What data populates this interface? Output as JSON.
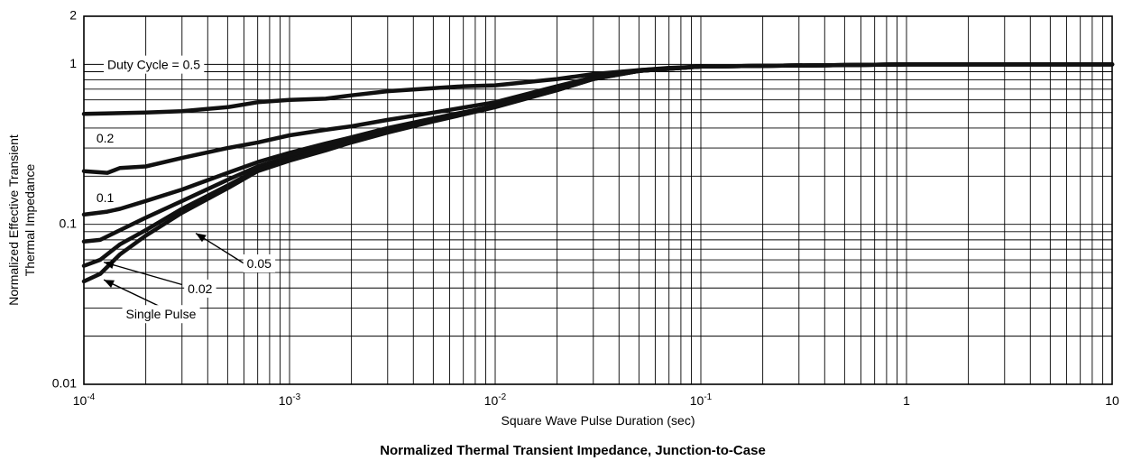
{
  "chart_data": {
    "type": "line",
    "title": "Normalized Thermal Transient Impedance, Junction-to-Case",
    "xlabel": "Square Wave Pulse Duration (sec)",
    "ylabel_line1": "Normalized Effective Transient",
    "ylabel_line2": "Thermal Impedance",
    "x_scale": "log",
    "y_scale": "log",
    "xlim": [
      0.0001,
      10
    ],
    "ylim": [
      0.01,
      2
    ],
    "grid": true,
    "x_ticks": [
      {
        "value": 0.0001,
        "base": "10",
        "exp": "-4"
      },
      {
        "value": 0.001,
        "base": "10",
        "exp": "-3"
      },
      {
        "value": 0.01,
        "base": "10",
        "exp": "-2"
      },
      {
        "value": 0.1,
        "base": "10",
        "exp": "-1"
      },
      {
        "value": 1,
        "base": "1",
        "exp": ""
      },
      {
        "value": 10,
        "base": "10",
        "exp": ""
      }
    ],
    "y_ticks": [
      {
        "value": 0.01,
        "label": "0.01"
      },
      {
        "value": 0.1,
        "label": "0.1"
      },
      {
        "value": 1,
        "label": "1"
      },
      {
        "value": 2,
        "label": "2"
      }
    ],
    "series": [
      {
        "name": "Duty Cycle = 0.5",
        "x": [
          0.0001,
          0.0002,
          0.0003,
          0.0005,
          0.0007,
          0.001,
          0.0015,
          0.002,
          0.003,
          0.005,
          0.007,
          0.01,
          0.02,
          0.03,
          0.05,
          0.07,
          0.1,
          0.2,
          0.5,
          1,
          10
        ],
        "y": [
          0.49,
          0.5,
          0.51,
          0.54,
          0.58,
          0.6,
          0.61,
          0.64,
          0.68,
          0.71,
          0.73,
          0.74,
          0.81,
          0.87,
          0.92,
          0.95,
          0.97,
          0.98,
          0.99,
          1.0,
          1.0
        ]
      },
      {
        "name": "0.2",
        "x": [
          0.0001,
          0.00013,
          0.00015,
          0.0002,
          0.0003,
          0.0005,
          0.0007,
          0.001,
          0.0015,
          0.002,
          0.003,
          0.005,
          0.01,
          0.02,
          0.03,
          0.05,
          0.1,
          1,
          10
        ],
        "y": [
          0.215,
          0.21,
          0.225,
          0.23,
          0.26,
          0.3,
          0.325,
          0.36,
          0.39,
          0.41,
          0.45,
          0.5,
          0.58,
          0.73,
          0.83,
          0.92,
          0.97,
          1.0,
          1.0
        ]
      },
      {
        "name": "0.1",
        "x": [
          0.0001,
          0.00013,
          0.00015,
          0.0002,
          0.0003,
          0.0005,
          0.0007,
          0.001,
          0.0015,
          0.002,
          0.003,
          0.005,
          0.01,
          0.02,
          0.03,
          0.05,
          0.1,
          1,
          10
        ],
        "y": [
          0.115,
          0.12,
          0.125,
          0.14,
          0.165,
          0.21,
          0.245,
          0.28,
          0.32,
          0.35,
          0.4,
          0.46,
          0.55,
          0.7,
          0.82,
          0.91,
          0.97,
          1.0,
          1.0
        ]
      },
      {
        "name": "0.05",
        "x": [
          0.0001,
          0.00012,
          0.00015,
          0.0002,
          0.0003,
          0.0005,
          0.0007,
          0.001,
          0.0015,
          0.002,
          0.003,
          0.005,
          0.01,
          0.02,
          0.03,
          0.05,
          0.1,
          1,
          10
        ],
        "y": [
          0.078,
          0.08,
          0.092,
          0.11,
          0.14,
          0.19,
          0.23,
          0.265,
          0.305,
          0.335,
          0.385,
          0.45,
          0.55,
          0.7,
          0.82,
          0.91,
          0.97,
          1.0,
          1.0
        ]
      },
      {
        "name": "0.02",
        "x": [
          0.0001,
          0.00012,
          0.00015,
          0.0002,
          0.0003,
          0.0005,
          0.0007,
          0.001,
          0.0015,
          0.002,
          0.003,
          0.005,
          0.01,
          0.02,
          0.03,
          0.05,
          0.1,
          1,
          10
        ],
        "y": [
          0.055,
          0.06,
          0.075,
          0.092,
          0.125,
          0.175,
          0.22,
          0.255,
          0.295,
          0.33,
          0.38,
          0.445,
          0.545,
          0.69,
          0.81,
          0.91,
          0.97,
          1.0,
          1.0
        ]
      },
      {
        "name": "Single Pulse",
        "x": [
          0.0001,
          0.00012,
          0.00015,
          0.0002,
          0.0003,
          0.0005,
          0.0007,
          0.001,
          0.0015,
          0.002,
          0.003,
          0.005,
          0.01,
          0.02,
          0.03,
          0.05,
          0.1,
          1,
          10
        ],
        "y": [
          0.044,
          0.049,
          0.065,
          0.085,
          0.118,
          0.168,
          0.215,
          0.25,
          0.29,
          0.325,
          0.375,
          0.44,
          0.54,
          0.69,
          0.81,
          0.91,
          0.97,
          1.0,
          1.0
        ]
      }
    ],
    "annotations": [
      {
        "text": "Duty Cycle = 0.5",
        "x": 0.00013,
        "y": 0.98,
        "anchor": "start"
      },
      {
        "text": "0.2",
        "x": 0.000115,
        "y": 0.34,
        "anchor": "start"
      },
      {
        "text": "0.1",
        "x": 0.000115,
        "y": 0.145,
        "anchor": "start"
      },
      {
        "text": "0.05",
        "x": 0.00062,
        "y": 0.056,
        "anchor": "start"
      },
      {
        "text": "0.02",
        "x": 0.00032,
        "y": 0.039,
        "anchor": "start"
      },
      {
        "text": "Single Pulse",
        "x": 0.00016,
        "y": 0.027,
        "anchor": "start"
      }
    ],
    "arrows": [
      {
        "from": [
          0.0006,
          0.057
        ],
        "to": [
          0.00035,
          0.088
        ]
      },
      {
        "from": [
          0.0003,
          0.042
        ],
        "to": [
          0.000125,
          0.058
        ]
      },
      {
        "from": [
          0.00023,
          0.031
        ],
        "to": [
          0.000125,
          0.045
        ]
      }
    ]
  }
}
